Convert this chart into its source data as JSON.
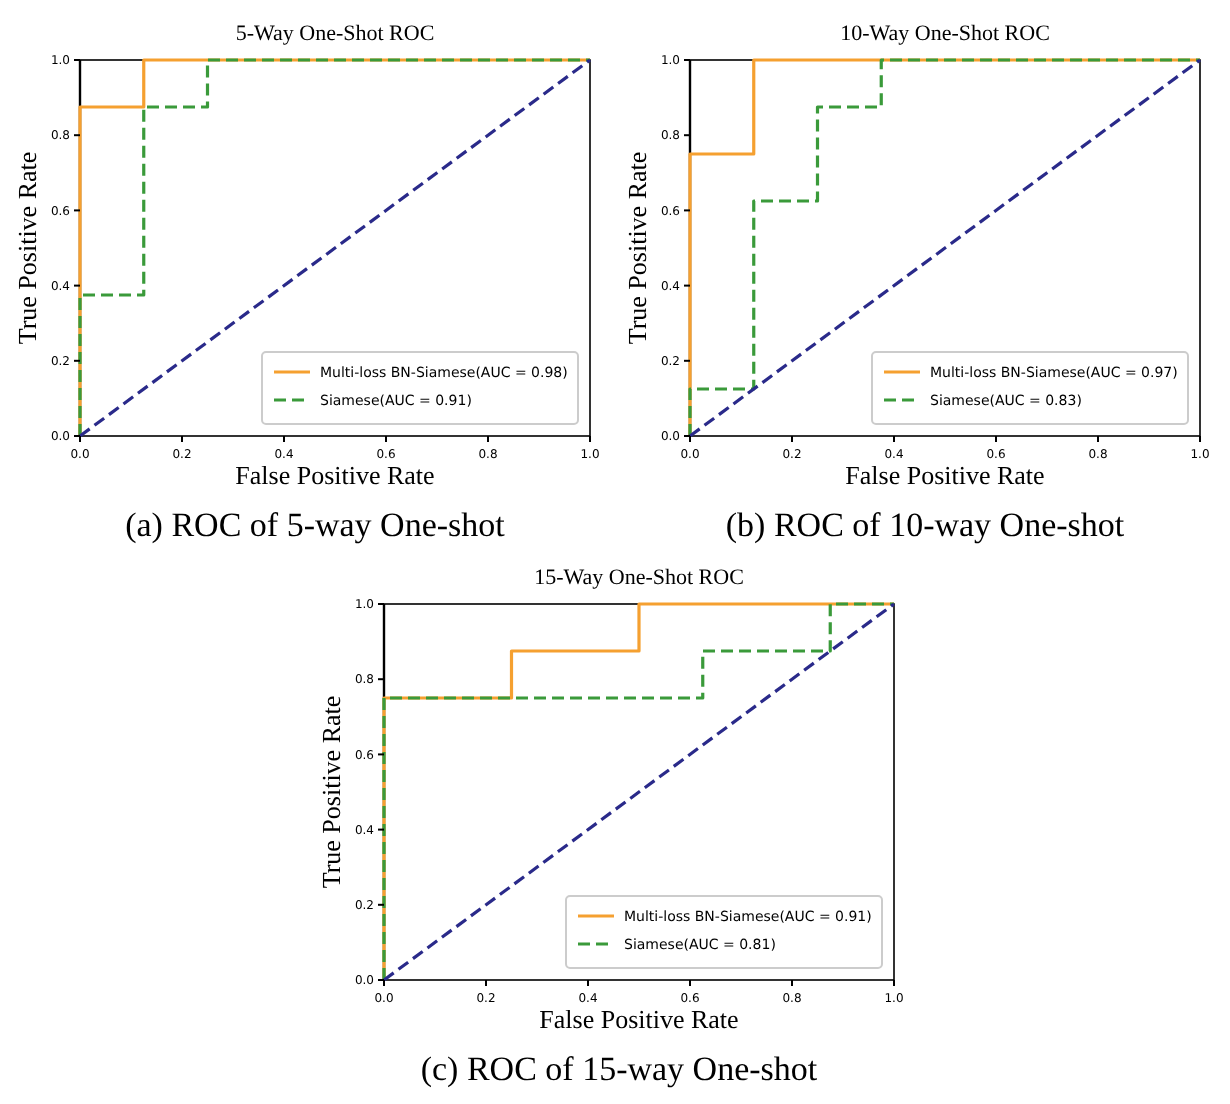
{
  "chart_data": [
    {
      "type": "line",
      "title": "5-Way One-Shot ROC",
      "xlabel": "False Positive Rate",
      "ylabel": "True Positive Rate",
      "annotations": [
        "(a) ROC of 5-way One-shot"
      ],
      "xlim": [
        0,
        1
      ],
      "ylim": [
        0,
        1
      ],
      "xticks": [
        {
          "value": 0,
          "label": "0.0"
        },
        {
          "value": 0.2,
          "label": "0.2"
        },
        {
          "value": 0.4,
          "label": "0.4"
        },
        {
          "value": 0.6,
          "label": "0.6"
        },
        {
          "value": 0.8,
          "label": "0.8"
        },
        {
          "value": 1,
          "label": "1.0"
        }
      ],
      "yticks": [
        {
          "value": 0,
          "label": "0.0"
        },
        {
          "value": 0.2,
          "label": "0.2"
        },
        {
          "value": 0.4,
          "label": "0.4"
        },
        {
          "value": 0.6,
          "label": "0.6"
        },
        {
          "value": 0.8,
          "label": "0.8"
        },
        {
          "value": 1,
          "label": "1.0"
        }
      ],
      "grid": false,
      "legend": "bottom right",
      "series": [
        {
          "name": "Multi-loss BN-Siamese(AUC = 0.98)",
          "color": "#f5a030",
          "line_style": "solid",
          "x": [
            0,
            0,
            0.125,
            0.125,
            1
          ],
          "values": [
            0,
            0.875,
            0.875,
            1,
            1
          ]
        },
        {
          "name": "Siamese(AUC = 0.91)",
          "color": "#3a9a3a",
          "line_style": "dashed",
          "x": [
            0,
            0,
            0.125,
            0.125,
            0.25,
            0.25,
            1
          ],
          "values": [
            0,
            0.375,
            0.375,
            0.875,
            0.875,
            1,
            1
          ]
        },
        {
          "color": "#2a2a8a",
          "line_style": "dashed",
          "x": [
            0,
            1
          ],
          "values": [
            0,
            1
          ]
        }
      ]
    },
    {
      "type": "line",
      "title": "10-Way One-Shot ROC",
      "xlabel": "False Positive Rate",
      "ylabel": "True Positive Rate",
      "annotations": [
        "(b) ROC of 10-way One-shot"
      ],
      "xlim": [
        0,
        1
      ],
      "ylim": [
        0,
        1
      ],
      "xticks": [
        {
          "value": 0,
          "label": "0.0"
        },
        {
          "value": 0.2,
          "label": "0.2"
        },
        {
          "value": 0.4,
          "label": "0.4"
        },
        {
          "value": 0.6,
          "label": "0.6"
        },
        {
          "value": 0.8,
          "label": "0.8"
        },
        {
          "value": 1,
          "label": "1.0"
        }
      ],
      "yticks": [
        {
          "value": 0,
          "label": "0.0"
        },
        {
          "value": 0.2,
          "label": "0.2"
        },
        {
          "value": 0.4,
          "label": "0.4"
        },
        {
          "value": 0.6,
          "label": "0.6"
        },
        {
          "value": 0.8,
          "label": "0.8"
        },
        {
          "value": 1,
          "label": "1.0"
        }
      ],
      "grid": false,
      "legend": "bottom right",
      "series": [
        {
          "name": "Multi-loss BN-Siamese(AUC = 0.97)",
          "color": "#f5a030",
          "line_style": "solid",
          "x": [
            0,
            0,
            0.125,
            0.125,
            1
          ],
          "values": [
            0,
            0.75,
            0.75,
            1,
            1
          ]
        },
        {
          "name": "Siamese(AUC = 0.83)",
          "color": "#3a9a3a",
          "line_style": "dashed",
          "x": [
            0,
            0,
            0.125,
            0.125,
            0.25,
            0.25,
            0.375,
            0.375,
            1
          ],
          "values": [
            0,
            0.125,
            0.125,
            0.625,
            0.625,
            0.875,
            0.875,
            1,
            1
          ]
        },
        {
          "color": "#2a2a8a",
          "line_style": "dashed",
          "x": [
            0,
            1
          ],
          "values": [
            0,
            1
          ]
        }
      ]
    },
    {
      "type": "line",
      "title": "15-Way One-Shot ROC",
      "xlabel": "False Positive Rate",
      "ylabel": "True Positive Rate",
      "annotations": [
        "(c) ROC of 15-way One-shot"
      ],
      "xlim": [
        0,
        1
      ],
      "ylim": [
        0,
        1
      ],
      "xticks": [
        {
          "value": 0,
          "label": "0.0"
        },
        {
          "value": 0.2,
          "label": "0.2"
        },
        {
          "value": 0.4,
          "label": "0.4"
        },
        {
          "value": 0.6,
          "label": "0.6"
        },
        {
          "value": 0.8,
          "label": "0.8"
        },
        {
          "value": 1,
          "label": "1.0"
        }
      ],
      "yticks": [
        {
          "value": 0,
          "label": "0.0"
        },
        {
          "value": 0.2,
          "label": "0.2"
        },
        {
          "value": 0.4,
          "label": "0.4"
        },
        {
          "value": 0.6,
          "label": "0.6"
        },
        {
          "value": 0.8,
          "label": "0.8"
        },
        {
          "value": 1,
          "label": "1.0"
        }
      ],
      "grid": false,
      "legend": "bottom right",
      "series": [
        {
          "name": "Multi-loss BN-Siamese(AUC = 0.91)",
          "color": "#f5a030",
          "line_style": "solid",
          "x": [
            0,
            0,
            0.25,
            0.25,
            0.5,
            0.5,
            1
          ],
          "values": [
            0,
            0.75,
            0.75,
            0.875,
            0.875,
            1,
            1
          ]
        },
        {
          "name": "Siamese(AUC = 0.81)",
          "color": "#3a9a3a",
          "line_style": "dashed",
          "x": [
            0,
            0,
            0.625,
            0.625,
            0.875,
            0.875,
            1
          ],
          "values": [
            0,
            0.75,
            0.75,
            0.875,
            0.875,
            1,
            1
          ]
        },
        {
          "color": "#2a2a8a",
          "line_style": "dashed",
          "x": [
            0,
            1
          ],
          "values": [
            0,
            1
          ]
        }
      ]
    }
  ]
}
